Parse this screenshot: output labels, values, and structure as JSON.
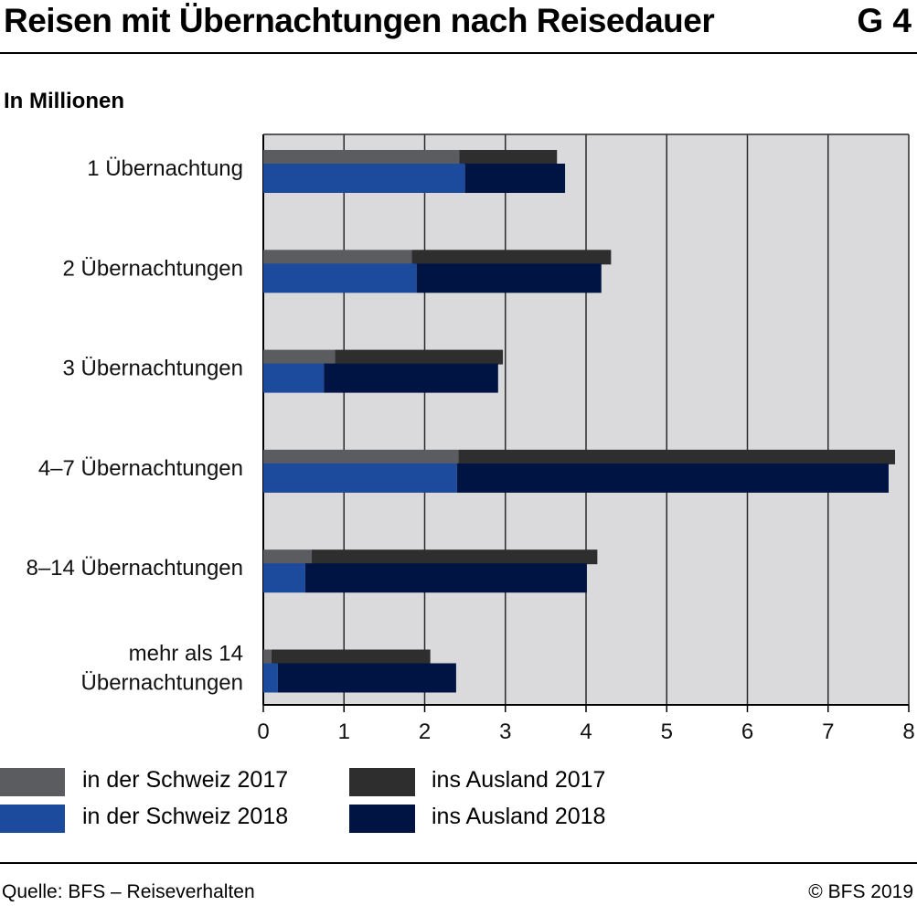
{
  "title": "Reisen mit Übernachtungen nach Reisedauer",
  "figure_number": "G 4",
  "unit_label": "In Millionen",
  "source": "Quelle: BFS – Reiseverhalten",
  "copyright": "© BFS 2019",
  "colors": {
    "schweiz_2017": "#5a5c60",
    "ausland_2017": "#2e2e2f",
    "schweiz_2018": "#1c4a9c",
    "ausland_2018": "#001444",
    "plot_background": "#dadadd",
    "grid": "#2a2a2a"
  },
  "legend": [
    {
      "label": "in der Schweiz 2017",
      "color": "#5a5c60"
    },
    {
      "label": "ins Ausland 2017",
      "color": "#2e2e2f"
    },
    {
      "label": "in der Schweiz 2018",
      "color": "#1c4a9c"
    },
    {
      "label": "ins Ausland 2018",
      "color": "#001444"
    }
  ],
  "chart_data": {
    "type": "bar",
    "orientation": "horizontal",
    "stacked": true,
    "title": "Reisen mit Übernachtungen nach Reisedauer",
    "ylabel": "In Millionen",
    "xlim": [
      0,
      8
    ],
    "xticks": [
      0,
      1,
      2,
      3,
      4,
      5,
      6,
      7,
      8
    ],
    "grid": true,
    "legend_position": "bottom",
    "categories": [
      [
        "1 Übernachtung"
      ],
      [
        "2 Übernachtungen"
      ],
      [
        "3 Übernachtungen"
      ],
      [
        "4–7 Übernachtungen"
      ],
      [
        "8–14 Übernachtungen"
      ],
      [
        "mehr als 14",
        "Übernachtungen"
      ]
    ],
    "groups": [
      {
        "year": "2017",
        "series": [
          {
            "name": "in der Schweiz 2017",
            "values": [
              2.43,
              1.84,
              0.89,
              2.42,
              0.6,
              0.1
            ]
          },
          {
            "name": "ins Ausland 2017",
            "values": [
              1.21,
              2.47,
              2.08,
              5.41,
              3.54,
              1.97
            ]
          }
        ]
      },
      {
        "year": "2018",
        "series": [
          {
            "name": "in der Schweiz 2018",
            "values": [
              2.5,
              1.9,
              0.75,
              2.4,
              0.52,
              0.18
            ]
          },
          {
            "name": "ins Ausland 2018",
            "values": [
              1.24,
              2.29,
              2.16,
              5.35,
              3.49,
              2.21
            ]
          }
        ]
      }
    ]
  }
}
